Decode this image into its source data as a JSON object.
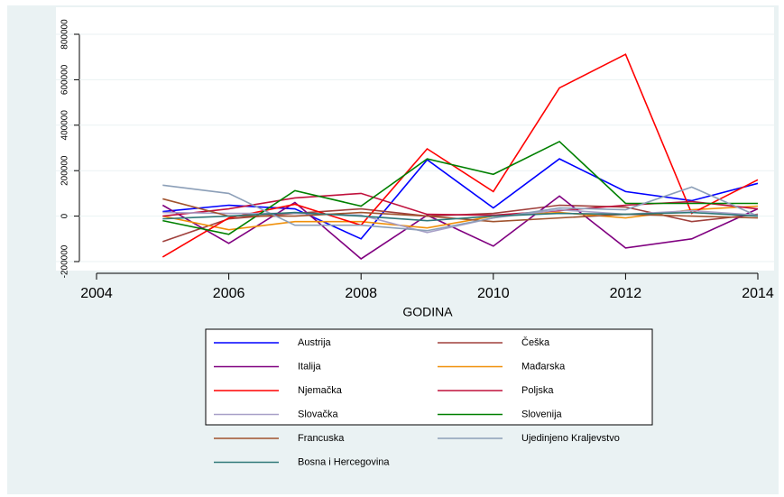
{
  "chart_data": {
    "type": "line",
    "x_label": "GODINA",
    "x": [
      2005,
      2006,
      2007,
      2008,
      2009,
      2010,
      2011,
      2012,
      2013,
      2014
    ],
    "xlim": [
      2004,
      2014
    ],
    "xticks": [
      2004,
      2006,
      2008,
      2010,
      2012,
      2014
    ],
    "ylim": [
      -200000,
      800000
    ],
    "yticks": [
      -200000,
      0,
      200000,
      400000,
      600000,
      800000
    ],
    "grid": true,
    "series": [
      {
        "name": "Austrija",
        "color": "#0000ff",
        "values": [
          20000,
          48000,
          32000,
          -100000,
          248000,
          36000,
          252000,
          108000,
          68000,
          144000
        ]
      },
      {
        "name": "Češka",
        "color": "#a0403c",
        "values": [
          -112000,
          -12000,
          12000,
          32000,
          0,
          12000,
          48000,
          40000,
          -24000,
          8000
        ]
      },
      {
        "name": "Italija",
        "color": "#800080",
        "values": [
          48000,
          -120000,
          60000,
          -188000,
          4000,
          -132000,
          88000,
          -140000,
          -100000,
          32000
        ]
      },
      {
        "name": "Mađarska",
        "color": "#f0900a",
        "values": [
          0,
          -60000,
          -24000,
          -24000,
          -52000,
          0,
          16000,
          -8000,
          28000,
          44000
        ]
      },
      {
        "name": "Njemačka",
        "color": "#ff0000",
        "values": [
          -180000,
          -8000,
          52000,
          -40000,
          296000,
          108000,
          564000,
          712000,
          12000,
          160000
        ]
      },
      {
        "name": "Poljska",
        "color": "#c0103c",
        "values": [
          0,
          32000,
          80000,
          100000,
          8000,
          4000,
          24000,
          48000,
          64000,
          32000
        ]
      },
      {
        "name": "Slovačka",
        "color": "#a8a0c8",
        "values": [
          16000,
          12000,
          12000,
          4000,
          -72000,
          -8000,
          28000,
          8000,
          24000,
          4000
        ]
      },
      {
        "name": "Slovenija",
        "color": "#008000",
        "values": [
          -20000,
          -80000,
          112000,
          44000,
          252000,
          184000,
          328000,
          56000,
          56000,
          56000
        ]
      },
      {
        "name": "Francuska",
        "color": "#a0522d",
        "values": [
          76000,
          0,
          0,
          16000,
          0,
          -24000,
          -8000,
          8000,
          0,
          -8000
        ]
      },
      {
        "name": "Ujedinjeno Kraljevstvo",
        "color": "#8c9fb8",
        "values": [
          136000,
          100000,
          -40000,
          -40000,
          -64000,
          -8000,
          36000,
          28000,
          128000,
          0
        ]
      },
      {
        "name": "Bosna i Hercegovina",
        "color": "#2f7878",
        "values": [
          -12000,
          0,
          16000,
          0,
          -20000,
          0,
          12000,
          8000,
          16000,
          0
        ]
      }
    ]
  }
}
